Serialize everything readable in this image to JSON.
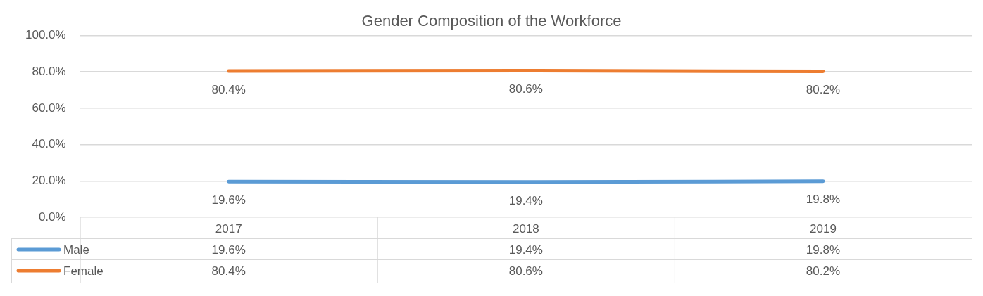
{
  "chart_data": {
    "type": "line",
    "title": "Gender Composition of the Workforce",
    "categories": [
      "2017",
      "2018",
      "2019"
    ],
    "series": [
      {
        "name": "Male",
        "color": "#5b9bd5",
        "values": [
          19.6,
          19.4,
          19.8
        ],
        "value_labels": [
          "19.6%",
          "19.4%",
          "19.8%"
        ]
      },
      {
        "name": "Female",
        "color": "#ed7d31",
        "values": [
          80.4,
          80.6,
          80.2
        ],
        "value_labels": [
          "80.4%",
          "80.6%",
          "80.2%"
        ]
      }
    ],
    "ylim": [
      0,
      100
    ],
    "yticks": [
      {
        "value": 0,
        "label": "0.0%"
      },
      {
        "value": 20,
        "label": "20.0%"
      },
      {
        "value": 40,
        "label": "40.0%"
      },
      {
        "value": 60,
        "label": "60.0%"
      },
      {
        "value": 80,
        "label": "80.0%"
      },
      {
        "value": 100,
        "label": "100.0%"
      }
    ],
    "grid": "y",
    "legend": "bottom",
    "marker": "none",
    "line_style": "solid"
  }
}
